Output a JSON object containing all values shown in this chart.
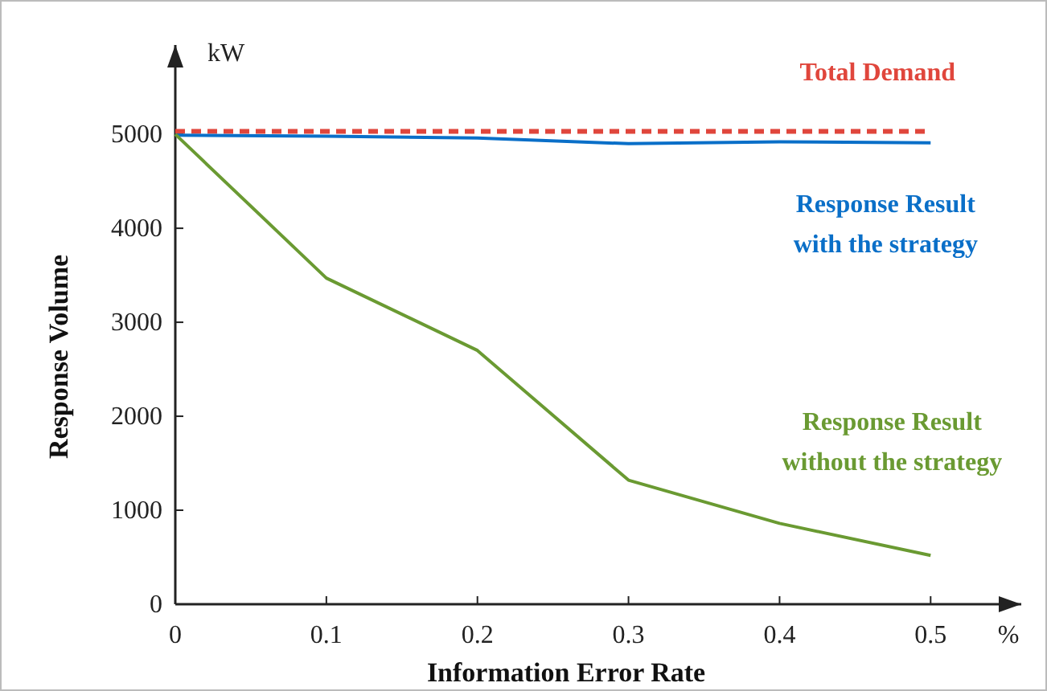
{
  "chart_data": {
    "type": "line",
    "xlabel": "Information Error Rate",
    "ylabel": "Response Volume",
    "annotations": [
      "kW",
      "%"
    ],
    "x": [
      0,
      0.1,
      0.2,
      0.3,
      0.4,
      0.5
    ],
    "xlim": [
      0,
      0.56
    ],
    "ylim": [
      0,
      5950
    ],
    "xticks": [
      0,
      0.1,
      0.2,
      0.3,
      0.4,
      0.5
    ],
    "yticks": [
      0,
      1000,
      2000,
      3000,
      4000,
      5000
    ],
    "grid": false,
    "legend": false,
    "series": [
      {
        "name": "Total Demand",
        "color": "#e0463c",
        "line_style": "dashed",
        "values": [
          5030,
          5030,
          5030,
          5030,
          5030,
          5030
        ]
      },
      {
        "name": "Response Result with the strategy",
        "color": "#0a6fc8",
        "line_style": "solid",
        "values": [
          4990,
          4980,
          4960,
          4900,
          4920,
          4910
        ]
      },
      {
        "name": "Response Result without the strategy",
        "color": "#6a9a32",
        "line_style": "solid",
        "values": [
          5000,
          3470,
          2700,
          1320,
          860,
          520
        ]
      }
    ]
  }
}
